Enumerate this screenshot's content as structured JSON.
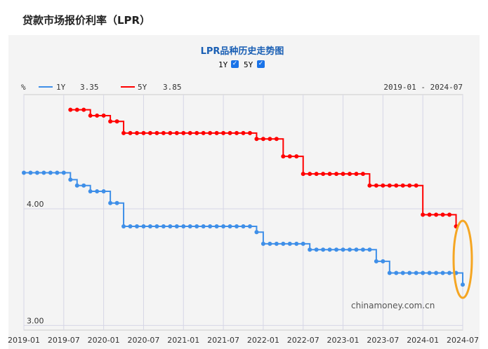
{
  "page_title": "贷款市场报价利率（LPR）",
  "chart_data": {
    "type": "line",
    "title": "LPR品种历史走势图",
    "toggles": [
      {
        "label": "1Y",
        "checked": true
      },
      {
        "label": "5Y",
        "checked": true
      }
    ],
    "ylabel": "%",
    "range_label": "2019-01 - 2024-07",
    "watermark": "chinamoney.com.cn",
    "ylim": [
      2.96,
      4.98
    ],
    "yticks": [
      "3.00",
      "4.00"
    ],
    "ytick_values": [
      3.0,
      4.0
    ],
    "xticks": [
      "2019-01",
      "2019-07",
      "2020-01",
      "2020-07",
      "2021-01",
      "2021-07",
      "2022-01",
      "2022-07",
      "2023-01",
      "2023-07",
      "2024-01",
      "2024-07"
    ],
    "x_start": "2019-01",
    "n_months": 67,
    "series": [
      {
        "name": "1Y",
        "latest": "3.35",
        "color": "#3f8fe8",
        "start_month": 0,
        "values": [
          4.31,
          4.31,
          4.31,
          4.31,
          4.31,
          4.31,
          4.31,
          4.25,
          4.2,
          4.2,
          4.15,
          4.15,
          4.15,
          4.05,
          4.05,
          3.85,
          3.85,
          3.85,
          3.85,
          3.85,
          3.85,
          3.85,
          3.85,
          3.85,
          3.85,
          3.85,
          3.85,
          3.85,
          3.85,
          3.85,
          3.85,
          3.85,
          3.85,
          3.85,
          3.85,
          3.8,
          3.7,
          3.7,
          3.7,
          3.7,
          3.7,
          3.7,
          3.7,
          3.65,
          3.65,
          3.65,
          3.65,
          3.65,
          3.65,
          3.65,
          3.65,
          3.65,
          3.65,
          3.55,
          3.55,
          3.45,
          3.45,
          3.45,
          3.45,
          3.45,
          3.45,
          3.45,
          3.45,
          3.45,
          3.45,
          3.45,
          3.35
        ]
      },
      {
        "name": "5Y",
        "latest": "3.85",
        "color": "#ff0000",
        "start_month": 7,
        "values": [
          4.85,
          4.85,
          4.85,
          4.8,
          4.8,
          4.8,
          4.75,
          4.75,
          4.65,
          4.65,
          4.65,
          4.65,
          4.65,
          4.65,
          4.65,
          4.65,
          4.65,
          4.65,
          4.65,
          4.65,
          4.65,
          4.65,
          4.65,
          4.65,
          4.65,
          4.65,
          4.65,
          4.65,
          4.6,
          4.6,
          4.6,
          4.6,
          4.45,
          4.45,
          4.45,
          4.3,
          4.3,
          4.3,
          4.3,
          4.3,
          4.3,
          4.3,
          4.3,
          4.3,
          4.3,
          4.2,
          4.2,
          4.2,
          4.2,
          4.2,
          4.2,
          4.2,
          4.2,
          3.95,
          3.95,
          3.95,
          3.95,
          3.95,
          3.85
        ]
      }
    ],
    "annotation": {
      "type": "ellipse",
      "color": "#f5a623",
      "target": "2024-07"
    }
  }
}
